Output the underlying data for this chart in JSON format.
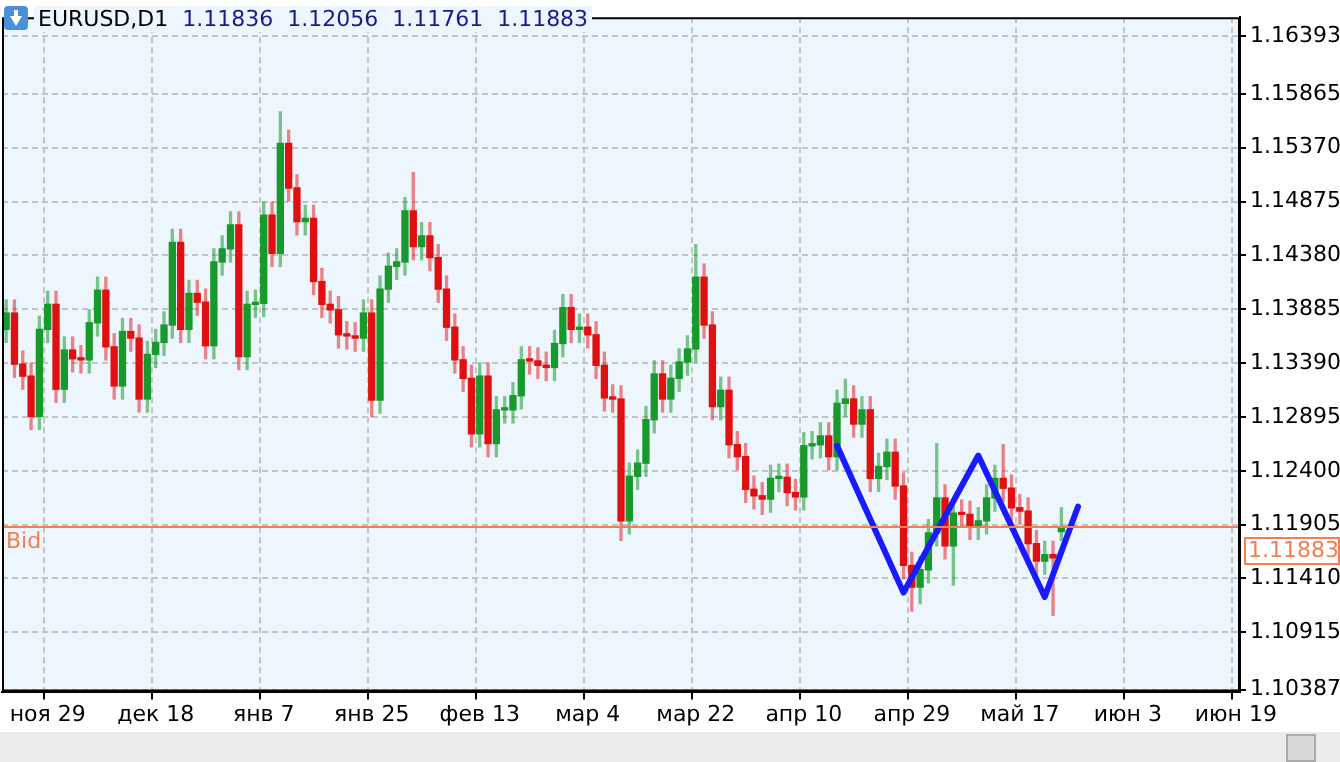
{
  "chart_data": {
    "type": "candlestick",
    "title": "EURUSD,D1 1.11836 1.12056 1.11761 1.11883",
    "categories": [
      null,
      null,
      null,
      null,
      null,
      "ноя 29",
      null,
      null,
      null,
      null,
      null,
      null,
      null,
      null,
      null,
      null,
      null,
      null,
      "дек 18",
      null,
      null,
      null,
      null,
      null,
      null,
      null,
      null,
      null,
      null,
      null,
      null,
      "янв 7",
      null,
      null,
      null,
      null,
      null,
      null,
      null,
      null,
      null,
      null,
      null,
      null,
      "янв 25",
      null,
      null,
      null,
      null,
      null,
      null,
      null,
      null,
      null,
      null,
      null,
      null,
      "фев 13",
      null,
      null,
      null,
      null,
      null,
      null,
      null,
      null,
      null,
      null,
      null,
      null,
      "мар 4",
      null,
      null,
      null,
      null,
      null,
      null,
      null,
      null,
      null,
      null,
      null,
      null,
      "мар 22",
      null,
      null,
      null,
      null,
      null,
      null,
      null,
      null,
      null,
      null,
      null,
      null,
      "апр 10",
      null,
      null,
      null,
      null,
      null,
      null,
      null,
      null,
      null,
      null,
      null,
      null,
      "апр 29",
      null,
      null,
      null,
      null,
      null,
      null,
      null,
      null,
      null,
      null,
      null,
      null,
      "май 17",
      null,
      null,
      null,
      null,
      null,
      null,
      null,
      null,
      null,
      null,
      null,
      null,
      "июн 3",
      null,
      null,
      null,
      null,
      null,
      null,
      null,
      null,
      null,
      null,
      null,
      null,
      "июн 19"
    ],
    "series": [
      {
        "type": "candlestick",
        "ohlc": [
          [
            1.137,
            1.1397,
            1.1358,
            1.1385
          ],
          [
            1.1385,
            1.1397,
            1.1326,
            1.1338
          ],
          [
            1.1338,
            1.135,
            1.1315,
            1.1327
          ],
          [
            1.1327,
            1.1339,
            1.1278,
            1.129
          ],
          [
            1.129,
            1.1382,
            1.1278,
            1.137
          ],
          [
            1.137,
            1.1405,
            1.1358,
            1.1393
          ],
          [
            1.1393,
            1.1405,
            1.1303,
            1.1315
          ],
          [
            1.1315,
            1.1363,
            1.1303,
            1.1351
          ],
          [
            1.1351,
            1.1363,
            1.1331,
            1.1343
          ],
          [
            1.1343,
            1.1355,
            1.133,
            1.1342
          ],
          [
            1.1342,
            1.1388,
            1.133,
            1.1376
          ],
          [
            1.1376,
            1.1418,
            1.1364,
            1.1406
          ],
          [
            1.1406,
            1.1418,
            1.1342,
            1.1354
          ],
          [
            1.1354,
            1.1366,
            1.1306,
            1.1318
          ],
          [
            1.1318,
            1.138,
            1.1306,
            1.1368
          ],
          [
            1.1368,
            1.138,
            1.135,
            1.1362
          ],
          [
            1.1362,
            1.1374,
            1.1294,
            1.1306
          ],
          [
            1.1306,
            1.1359,
            1.1294,
            1.1347
          ],
          [
            1.1347,
            1.137,
            1.1335,
            1.1358
          ],
          [
            1.1358,
            1.1386,
            1.1346,
            1.1374
          ],
          [
            1.1374,
            1.1462,
            1.1362,
            1.145
          ],
          [
            1.145,
            1.1462,
            1.1358,
            1.137
          ],
          [
            1.137,
            1.1415,
            1.1358,
            1.1403
          ],
          [
            1.1403,
            1.1415,
            1.1383,
            1.1395
          ],
          [
            1.1395,
            1.1407,
            1.1343,
            1.1355
          ],
          [
            1.1355,
            1.1444,
            1.1343,
            1.1432
          ],
          [
            1.1432,
            1.1456,
            1.142,
            1.1444
          ],
          [
            1.1444,
            1.1478,
            1.1432,
            1.1466
          ],
          [
            1.1466,
            1.1478,
            1.1333,
            1.1345
          ],
          [
            1.1345,
            1.1405,
            1.1333,
            1.1393
          ],
          [
            1.1393,
            1.1406,
            1.1381,
            1.1394
          ],
          [
            1.1394,
            1.1487,
            1.1382,
            1.1475
          ],
          [
            1.1475,
            1.1487,
            1.1428,
            1.144
          ],
          [
            1.144,
            1.157,
            1.1428,
            1.1541
          ],
          [
            1.1541,
            1.1553,
            1.1488,
            1.15
          ],
          [
            1.15,
            1.1512,
            1.1457,
            1.1469
          ],
          [
            1.1469,
            1.1484,
            1.1457,
            1.1472
          ],
          [
            1.1472,
            1.1484,
            1.1402,
            1.1414
          ],
          [
            1.1414,
            1.1426,
            1.1381,
            1.1393
          ],
          [
            1.1393,
            1.1405,
            1.1376,
            1.1388
          ],
          [
            1.1388,
            1.14,
            1.1353,
            1.1365
          ],
          [
            1.1365,
            1.1377,
            1.1352,
            1.1364
          ],
          [
            1.1364,
            1.1376,
            1.135,
            1.1362
          ],
          [
            1.1362,
            1.1397,
            1.135,
            1.1385
          ],
          [
            1.1385,
            1.1397,
            1.129,
            1.1305
          ],
          [
            1.1305,
            1.1419,
            1.1293,
            1.1407
          ],
          [
            1.1407,
            1.144,
            1.1395,
            1.1428
          ],
          [
            1.1428,
            1.1444,
            1.1416,
            1.1432
          ],
          [
            1.1432,
            1.1491,
            1.142,
            1.1479
          ],
          [
            1.1479,
            1.1514,
            1.1434,
            1.1446
          ],
          [
            1.1446,
            1.1468,
            1.1434,
            1.1456
          ],
          [
            1.1456,
            1.1468,
            1.1424,
            1.1436
          ],
          [
            1.1436,
            1.1448,
            1.1395,
            1.1407
          ],
          [
            1.1407,
            1.1419,
            1.136,
            1.1372
          ],
          [
            1.1372,
            1.1384,
            1.133,
            1.1342
          ],
          [
            1.1342,
            1.1354,
            1.1313,
            1.1325
          ],
          [
            1.1325,
            1.1337,
            1.1262,
            1.1274
          ],
          [
            1.1274,
            1.1339,
            1.1262,
            1.1327
          ],
          [
            1.1327,
            1.1339,
            1.1253,
            1.1265
          ],
          [
            1.1265,
            1.1308,
            1.1253,
            1.1296
          ],
          [
            1.1296,
            1.1308,
            1.1284,
            1.1296
          ],
          [
            1.1296,
            1.1321,
            1.1284,
            1.1309
          ],
          [
            1.1309,
            1.1354,
            1.1297,
            1.1342
          ],
          [
            1.1342,
            1.1354,
            1.1329,
            1.1341
          ],
          [
            1.1341,
            1.1353,
            1.1325,
            1.1337
          ],
          [
            1.1337,
            1.1349,
            1.1323,
            1.1335
          ],
          [
            1.1335,
            1.1369,
            1.1323,
            1.1357
          ],
          [
            1.1357,
            1.1402,
            1.1345,
            1.139
          ],
          [
            1.139,
            1.1402,
            1.1358,
            1.137
          ],
          [
            1.137,
            1.1384,
            1.1358,
            1.1372
          ],
          [
            1.1372,
            1.1384,
            1.1353,
            1.1365
          ],
          [
            1.1365,
            1.1377,
            1.1325,
            1.1337
          ],
          [
            1.1337,
            1.1349,
            1.1295,
            1.1307
          ],
          [
            1.1307,
            1.1319,
            1.1294,
            1.1306
          ],
          [
            1.1306,
            1.1318,
            1.1176,
            1.1194
          ],
          [
            1.1194,
            1.1247,
            1.1182,
            1.1235
          ],
          [
            1.1235,
            1.1259,
            1.1223,
            1.1247
          ],
          [
            1.1247,
            1.1299,
            1.1235,
            1.1287
          ],
          [
            1.1287,
            1.1341,
            1.1275,
            1.1329
          ],
          [
            1.1329,
            1.1341,
            1.1294,
            1.1306
          ],
          [
            1.1306,
            1.1337,
            1.1294,
            1.1325
          ],
          [
            1.1325,
            1.1352,
            1.1313,
            1.134
          ],
          [
            1.134,
            1.1364,
            1.1328,
            1.1352
          ],
          [
            1.1352,
            1.1448,
            1.134,
            1.1418
          ],
          [
            1.1418,
            1.143,
            1.1362,
            1.1374
          ],
          [
            1.1374,
            1.1386,
            1.1287,
            1.1299
          ],
          [
            1.1299,
            1.1326,
            1.1287,
            1.1314
          ],
          [
            1.1314,
            1.1326,
            1.1252,
            1.1264
          ],
          [
            1.1264,
            1.1276,
            1.1241,
            1.1253
          ],
          [
            1.1253,
            1.1265,
            1.1211,
            1.1223
          ],
          [
            1.1223,
            1.1235,
            1.1205,
            1.1217
          ],
          [
            1.1217,
            1.1229,
            1.12,
            1.1214
          ],
          [
            1.1214,
            1.1245,
            1.1202,
            1.1233
          ],
          [
            1.1233,
            1.1246,
            1.1221,
            1.1234
          ],
          [
            1.1234,
            1.1246,
            1.1208,
            1.122
          ],
          [
            1.122,
            1.1232,
            1.1204,
            1.1216
          ],
          [
            1.1216,
            1.1275,
            1.1204,
            1.1263
          ],
          [
            1.1263,
            1.1276,
            1.1251,
            1.1264
          ],
          [
            1.1264,
            1.1284,
            1.1252,
            1.1272
          ],
          [
            1.1272,
            1.1284,
            1.1241,
            1.1253
          ],
          [
            1.1253,
            1.1314,
            1.1241,
            1.1302
          ],
          [
            1.1302,
            1.1324,
            1.129,
            1.1306
          ],
          [
            1.1306,
            1.1318,
            1.1271,
            1.1283
          ],
          [
            1.1283,
            1.1308,
            1.1271,
            1.1296
          ],
          [
            1.1296,
            1.1308,
            1.1221,
            1.1233
          ],
          [
            1.1233,
            1.1256,
            1.1221,
            1.1244
          ],
          [
            1.1244,
            1.1269,
            1.1232,
            1.1257
          ],
          [
            1.1257,
            1.1269,
            1.1214,
            1.1226
          ],
          [
            1.1226,
            1.1238,
            1.1141,
            1.1153
          ],
          [
            1.1153,
            1.1165,
            1.1111,
            1.1133
          ],
          [
            1.1133,
            1.1161,
            1.1118,
            1.1149
          ],
          [
            1.1149,
            1.1195,
            1.1137,
            1.1183
          ],
          [
            1.1183,
            1.1265,
            1.1171,
            1.1215
          ],
          [
            1.1215,
            1.1227,
            1.1159,
            1.1171
          ],
          [
            1.1171,
            1.1213,
            1.1135,
            1.1201
          ],
          [
            1.1201,
            1.1213,
            1.1188,
            1.12
          ],
          [
            1.12,
            1.1212,
            1.1177,
            1.1189
          ],
          [
            1.1189,
            1.1206,
            1.1177,
            1.1194
          ],
          [
            1.1194,
            1.1227,
            1.1182,
            1.1215
          ],
          [
            1.1215,
            1.1245,
            1.1203,
            1.1233
          ],
          [
            1.1233,
            1.1264,
            1.1212,
            1.1224
          ],
          [
            1.1224,
            1.1236,
            1.1194,
            1.1206
          ],
          [
            1.1206,
            1.1218,
            1.1191,
            1.1203
          ],
          [
            1.1203,
            1.1215,
            1.1161,
            1.1173
          ],
          [
            1.1173,
            1.1185,
            1.1145,
            1.1157
          ],
          [
            1.1157,
            1.1175,
            1.1145,
            1.1163
          ],
          [
            1.1163,
            1.1175,
            1.1107,
            1.116
          ],
          [
            1.1184,
            1.1206,
            1.1176,
            1.1188
          ],
          null,
          null,
          null,
          null,
          null,
          null,
          null,
          null,
          null,
          null,
          null,
          null,
          null,
          null,
          null,
          null,
          null,
          null,
          null,
          null,
          null
        ]
      },
      {
        "type": "line",
        "color": "#1a1aff",
        "values": [
          null,
          null,
          null,
          null,
          null,
          null,
          null,
          null,
          null,
          null,
          null,
          null,
          null,
          null,
          null,
          null,
          null,
          null,
          null,
          null,
          null,
          null,
          null,
          null,
          null,
          null,
          null,
          null,
          null,
          null,
          null,
          null,
          null,
          null,
          null,
          null,
          null,
          null,
          null,
          null,
          null,
          null,
          null,
          null,
          null,
          null,
          null,
          null,
          null,
          null,
          null,
          null,
          null,
          null,
          null,
          null,
          null,
          null,
          null,
          null,
          null,
          null,
          null,
          null,
          null,
          null,
          null,
          null,
          null,
          null,
          null,
          null,
          null,
          null,
          null,
          null,
          null,
          null,
          null,
          null,
          null,
          null,
          null,
          null,
          null,
          null,
          null,
          null,
          null,
          null,
          null,
          null,
          null,
          null,
          null,
          null,
          null,
          null,
          null,
          null,
          1.1263,
          null,
          null,
          null,
          null,
          null,
          null,
          null,
          1.1128,
          null,
          null,
          null,
          null,
          null,
          null,
          null,
          null,
          1.1254,
          null,
          null,
          null,
          null,
          null,
          null,
          null,
          1.1124,
          null,
          null,
          null,
          1.1207,
          null,
          null,
          null,
          null,
          null,
          null,
          null,
          null,
          null,
          null,
          null,
          null,
          null,
          null,
          null,
          null,
          null,
          null,
          null
        ]
      }
    ],
    "ylim": [
      1.1037,
      1.1657
    ],
    "yticks": [
      1.10387,
      1.10915,
      {
        "value": 1.1141,
        "label": "1.11410"
      },
      1.11905,
      {
        "value": 1.124,
        "label": "1.12400"
      },
      1.12895,
      {
        "value": 1.1339,
        "label": "1.13390"
      },
      1.13885,
      {
        "value": 1.1438,
        "label": "1.14380"
      },
      1.14875,
      {
        "value": 1.1537,
        "label": "1.15370"
      },
      1.15865,
      1.16393
    ],
    "ref_lines": [
      {
        "axis": "y",
        "value": 1.11883,
        "label": "Bid",
        "color": "#f2804f"
      }
    ],
    "annotations": [
      "1.11883"
    ],
    "grid": true,
    "legend": false
  }
}
